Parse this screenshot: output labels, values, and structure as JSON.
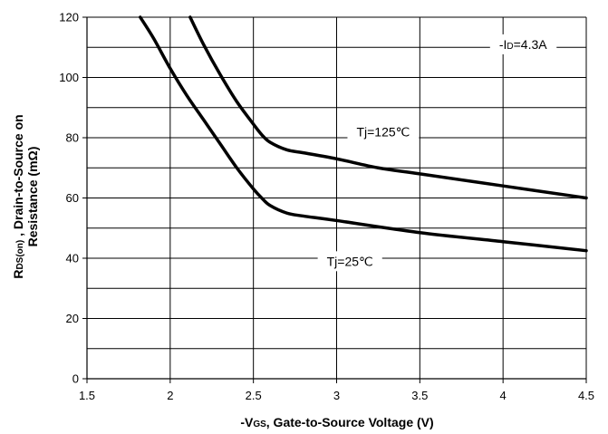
{
  "chart_data": {
    "type": "line",
    "xlabel": {
      "prefix": "-V",
      "subscript": "GS",
      "suffix": ", Gate-to-Source Voltage (V)"
    },
    "ylabel": {
      "line1_prefix": "R",
      "line1_subscript": "DS(on)",
      "line1_suffix": " , Drain-to-Source on",
      "line2": "Resistance (mΩ)"
    },
    "xlim": [
      1.5,
      4.5
    ],
    "ylim": [
      0,
      120
    ],
    "x_ticks": [
      "1.5",
      "2",
      "2.5",
      "3",
      "3.5",
      "4",
      "4.5"
    ],
    "y_ticks": [
      "0",
      "20",
      "40",
      "60",
      "80",
      "100",
      "120"
    ],
    "grid": true,
    "series": [
      {
        "name": "Tj=125℃",
        "x": [
          2.12,
          2.2,
          2.3,
          2.4,
          2.5,
          2.55,
          2.6,
          2.7,
          2.8,
          3.0,
          3.25,
          3.5,
          4.0,
          4.5
        ],
        "y": [
          120,
          111,
          101,
          92,
          84.5,
          81,
          78.5,
          76,
          75,
          73,
          70,
          68,
          64,
          60
        ]
      },
      {
        "name": "Tj=25℃",
        "x": [
          1.82,
          1.9,
          2.0,
          2.1,
          2.2,
          2.3,
          2.4,
          2.5,
          2.55,
          2.6,
          2.7,
          2.8,
          3.0,
          3.5,
          4.0,
          4.5
        ],
        "y": [
          120,
          113,
          103,
          94,
          86,
          78,
          70,
          63,
          60,
          57.5,
          55,
          54,
          52.5,
          48.5,
          45.5,
          42.5
        ]
      }
    ],
    "annotations": [
      {
        "text": "Tj=125℃",
        "x": 3.28,
        "y": 82
      },
      {
        "text": "Tj=25℃",
        "x": 3.08,
        "y": 39
      }
    ],
    "condition_label": {
      "prefix": "-I",
      "subscript": "D",
      "suffix": "=4.3A",
      "x": 4.12,
      "y": 111
    }
  }
}
